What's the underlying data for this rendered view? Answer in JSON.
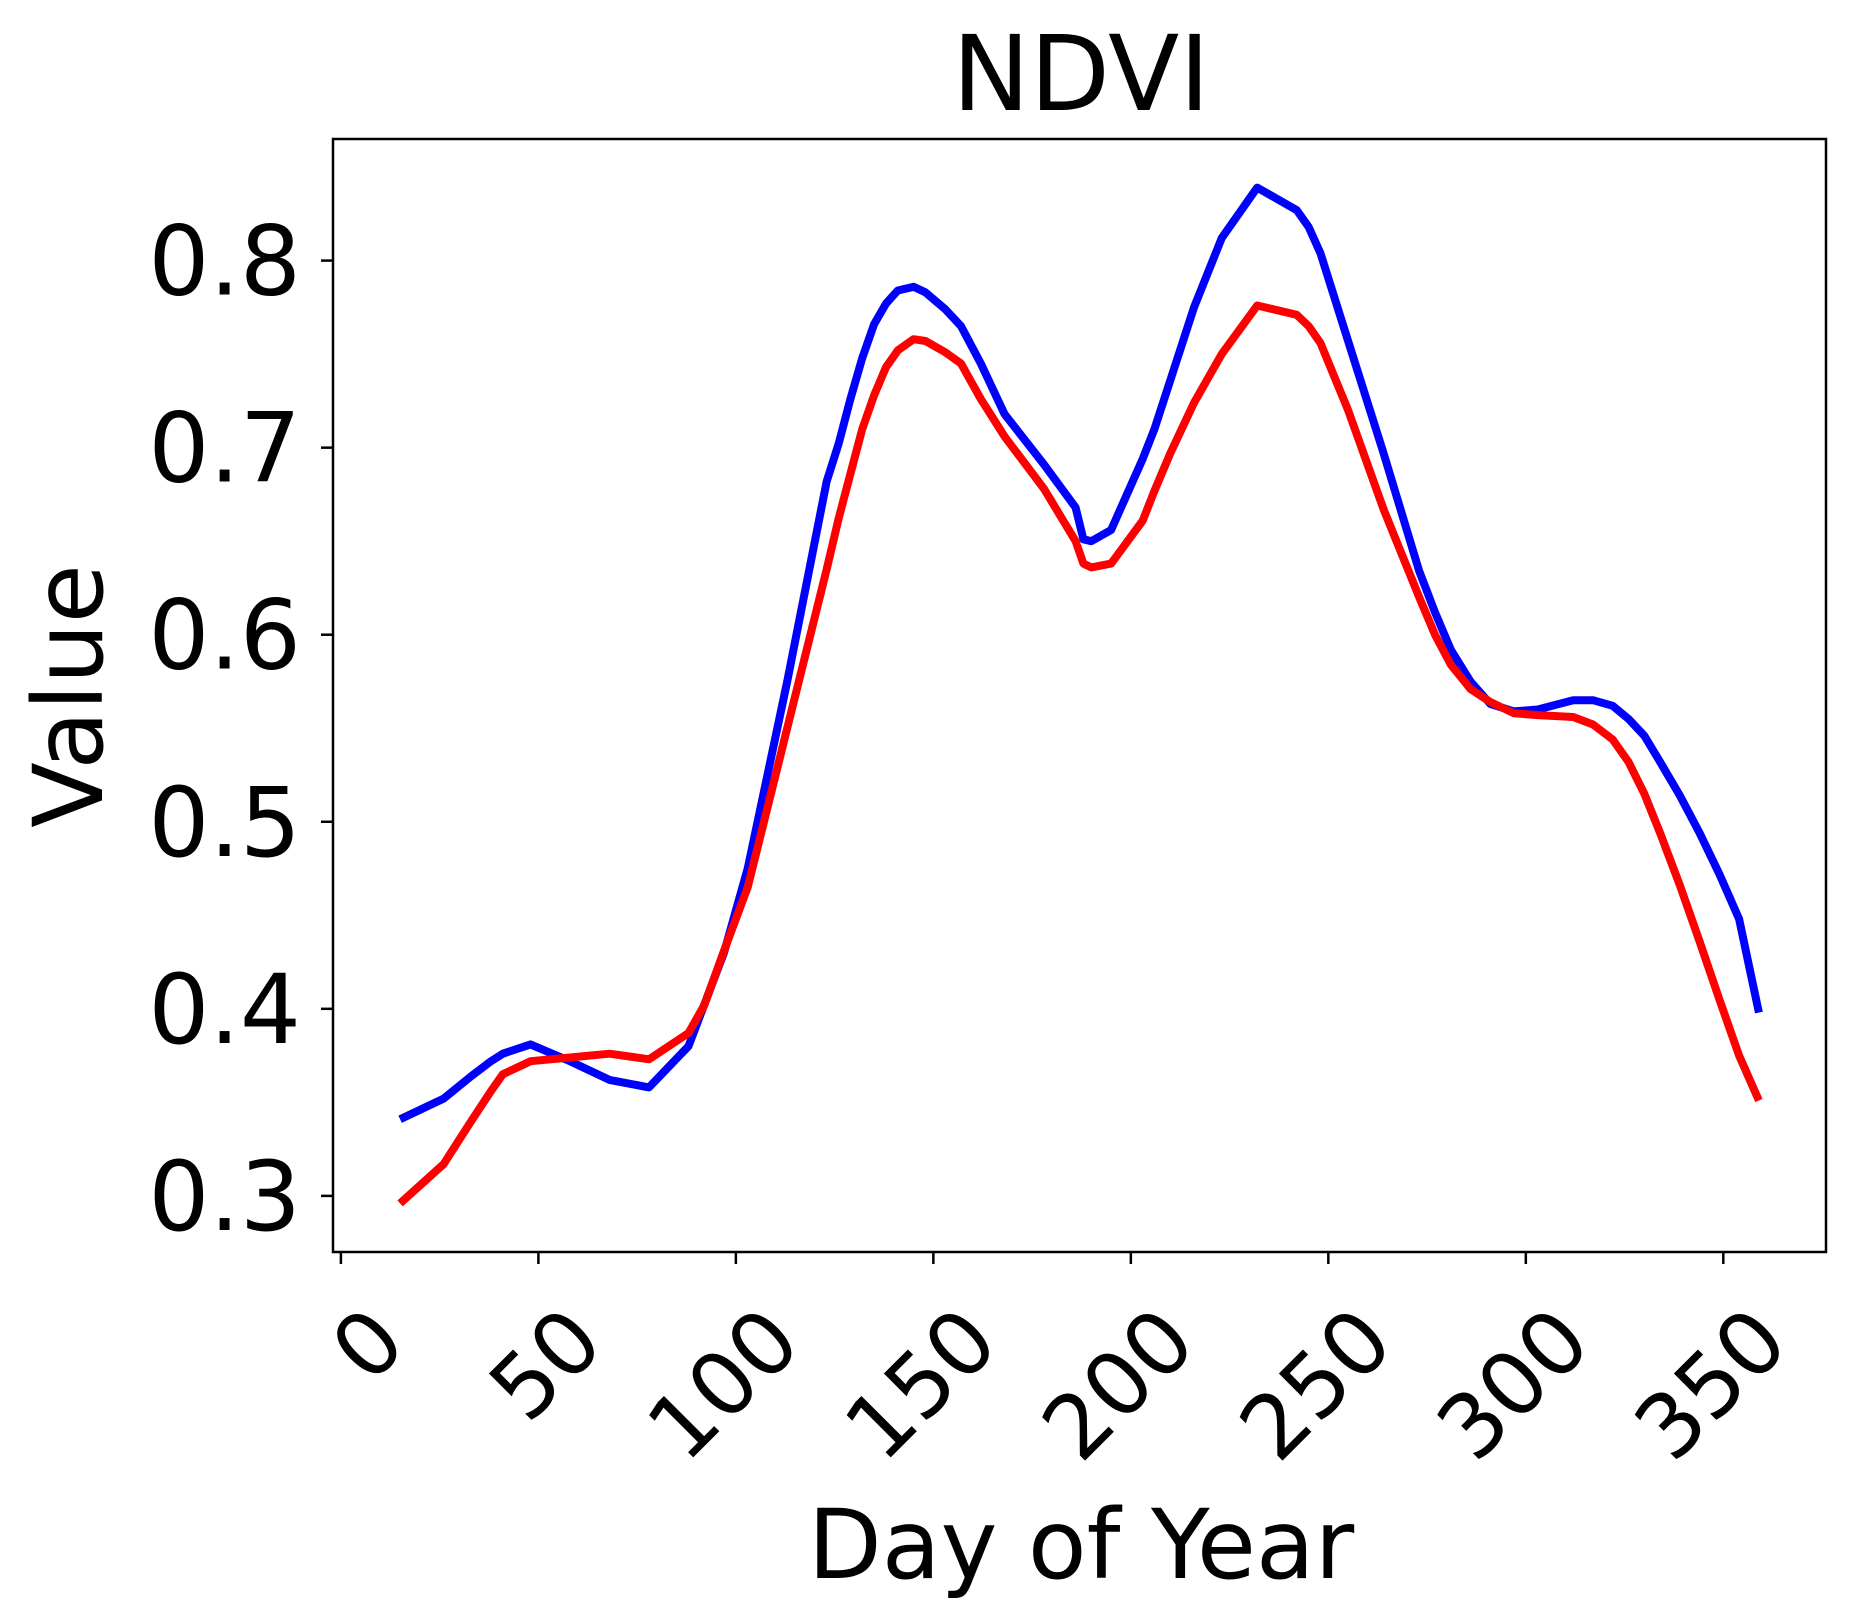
{
  "chart_data": {
    "type": "line",
    "title": "NDVI",
    "xlabel": "Day of Year",
    "ylabel": "Value",
    "xlim": [
      -2,
      376
    ],
    "ylim": [
      0.27,
      0.865
    ],
    "xticks": [
      0,
      50,
      100,
      150,
      200,
      250,
      300,
      350
    ],
    "yticks": [
      0.3,
      0.4,
      0.5,
      0.6,
      0.7,
      0.8
    ],
    "xtick_labels": [
      "0",
      "50",
      "100",
      "150",
      "200",
      "250",
      "300",
      "350"
    ],
    "ytick_labels": [
      "0.3",
      "0.4",
      "0.5",
      "0.6",
      "0.7",
      "0.8"
    ],
    "grid": false,
    "legend": null,
    "series": [
      {
        "color": "#0000ff",
        "points": [
          [
            15,
            0.341
          ],
          [
            26,
            0.352
          ],
          [
            33,
            0.364
          ],
          [
            38,
            0.372
          ],
          [
            41,
            0.376
          ],
          [
            48,
            0.381
          ],
          [
            58,
            0.372
          ],
          [
            68,
            0.362
          ],
          [
            78,
            0.358
          ],
          [
            88,
            0.38
          ],
          [
            97,
            0.43
          ],
          [
            103,
            0.475
          ],
          [
            113,
            0.575
          ],
          [
            123,
            0.682
          ],
          [
            126,
            0.702
          ],
          [
            129,
            0.726
          ],
          [
            132,
            0.748
          ],
          [
            135,
            0.766
          ],
          [
            138,
            0.777
          ],
          [
            141,
            0.784
          ],
          [
            145,
            0.786
          ],
          [
            148,
            0.783
          ],
          [
            153,
            0.774
          ],
          [
            157,
            0.765
          ],
          [
            162,
            0.745
          ],
          [
            168,
            0.718
          ],
          [
            178,
            0.691
          ],
          [
            186,
            0.668
          ],
          [
            188,
            0.651
          ],
          [
            190,
            0.65
          ],
          [
            195,
            0.656
          ],
          [
            203,
            0.694
          ],
          [
            206,
            0.71
          ],
          [
            210,
            0.736
          ],
          [
            216,
            0.775
          ],
          [
            223,
            0.812
          ],
          [
            232,
            0.839
          ],
          [
            242,
            0.827
          ],
          [
            245,
            0.818
          ],
          [
            248,
            0.804
          ],
          [
            255,
            0.757
          ],
          [
            264,
            0.697
          ],
          [
            273,
            0.634
          ],
          [
            277,
            0.612
          ],
          [
            281,
            0.592
          ],
          [
            286,
            0.575
          ],
          [
            291,
            0.563
          ],
          [
            297,
            0.559
          ],
          [
            303,
            0.56
          ],
          [
            312,
            0.565
          ],
          [
            317,
            0.565
          ],
          [
            322,
            0.562
          ],
          [
            326,
            0.555
          ],
          [
            330,
            0.546
          ],
          [
            334,
            0.532
          ],
          [
            339,
            0.514
          ],
          [
            344,
            0.494
          ],
          [
            349,
            0.472
          ],
          [
            354,
            0.448
          ],
          [
            359,
            0.398
          ]
        ]
      },
      {
        "color": "#ff0000",
        "points": [
          [
            15,
            0.296
          ],
          [
            26,
            0.317
          ],
          [
            33,
            0.34
          ],
          [
            38,
            0.356
          ],
          [
            41,
            0.365
          ],
          [
            48,
            0.372
          ],
          [
            58,
            0.374
          ],
          [
            68,
            0.376
          ],
          [
            78,
            0.373
          ],
          [
            88,
            0.387
          ],
          [
            92,
            0.402
          ],
          [
            97,
            0.431
          ],
          [
            103,
            0.465
          ],
          [
            113,
            0.55
          ],
          [
            123,
            0.635
          ],
          [
            126,
            0.662
          ],
          [
            129,
            0.686
          ],
          [
            132,
            0.71
          ],
          [
            135,
            0.728
          ],
          [
            138,
            0.743
          ],
          [
            141,
            0.752
          ],
          [
            145,
            0.758
          ],
          [
            148,
            0.757
          ],
          [
            153,
            0.751
          ],
          [
            157,
            0.745
          ],
          [
            162,
            0.726
          ],
          [
            168,
            0.706
          ],
          [
            178,
            0.678
          ],
          [
            186,
            0.65
          ],
          [
            188,
            0.638
          ],
          [
            190,
            0.636
          ],
          [
            195,
            0.638
          ],
          [
            203,
            0.661
          ],
          [
            206,
            0.677
          ],
          [
            210,
            0.697
          ],
          [
            216,
            0.724
          ],
          [
            223,
            0.75
          ],
          [
            232,
            0.776
          ],
          [
            242,
            0.771
          ],
          [
            245,
            0.765
          ],
          [
            248,
            0.756
          ],
          [
            255,
            0.72
          ],
          [
            264,
            0.667
          ],
          [
            273,
            0.62
          ],
          [
            277,
            0.6
          ],
          [
            281,
            0.584
          ],
          [
            286,
            0.571
          ],
          [
            291,
            0.564
          ],
          [
            297,
            0.558
          ],
          [
            303,
            0.557
          ],
          [
            312,
            0.556
          ],
          [
            317,
            0.552
          ],
          [
            322,
            0.544
          ],
          [
            326,
            0.532
          ],
          [
            330,
            0.515
          ],
          [
            334,
            0.494
          ],
          [
            339,
            0.466
          ],
          [
            344,
            0.436
          ],
          [
            349,
            0.405
          ],
          [
            354,
            0.375
          ],
          [
            359,
            0.351
          ]
        ]
      }
    ]
  }
}
